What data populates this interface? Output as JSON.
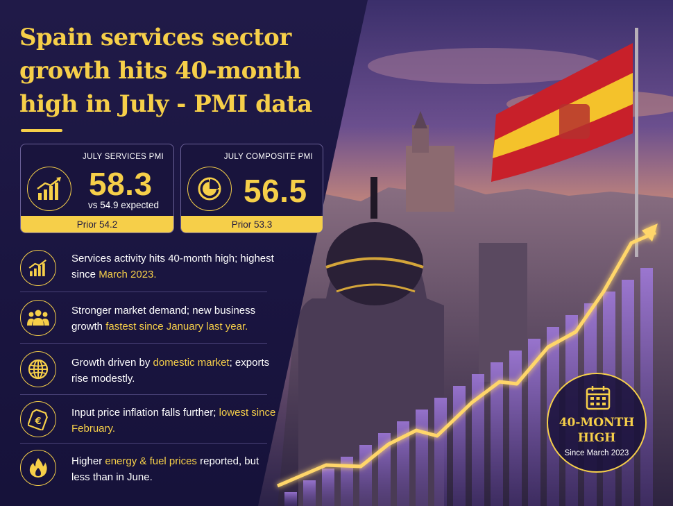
{
  "headline": {
    "line1": "Spain services sector",
    "line2": "growth hits 40-month",
    "line3": "high in July - PMI data"
  },
  "cards": {
    "services": {
      "label": "JULY SERVICES PMI",
      "value": "58.3",
      "sub": "vs 54.9 expected",
      "prior": "Prior 54.2",
      "icon": "bar-chart-up-icon"
    },
    "composite": {
      "label": "JULY COMPOSITE PMI",
      "value": "56.5",
      "prior": "Prior 53.3",
      "icon": "pie-chart-icon"
    }
  },
  "bullets": [
    {
      "icon": "bar-chart-up-icon",
      "pre": "Services activity hits 40-month high; highest since ",
      "hl": "March 2023.",
      "post": ""
    },
    {
      "icon": "people-icon",
      "pre": "Stronger market demand; new business growth ",
      "hl": "fastest since January last year.",
      "post": ""
    },
    {
      "icon": "globe-icon",
      "pre": "Growth driven by ",
      "hl": "domestic market",
      "post": "; exports rise modestly."
    },
    {
      "icon": "euro-tag-icon",
      "pre": "Input price inflation falls further; ",
      "hl": "lowest since February.",
      "post": ""
    },
    {
      "icon": "flame-icon",
      "pre": "Higher ",
      "hl": "energy & fuel prices",
      "post": " reported, but less than in June."
    }
  ],
  "badge": {
    "line1": "40-MONTH",
    "line2": "HIGH",
    "sub": "Since March 2023",
    "icon": "calendar-icon"
  },
  "colors": {
    "accent": "#f6cf49",
    "panel": "#1b1538",
    "flag_red": "#c8202a",
    "flag_yellow": "#f4c22b"
  }
}
